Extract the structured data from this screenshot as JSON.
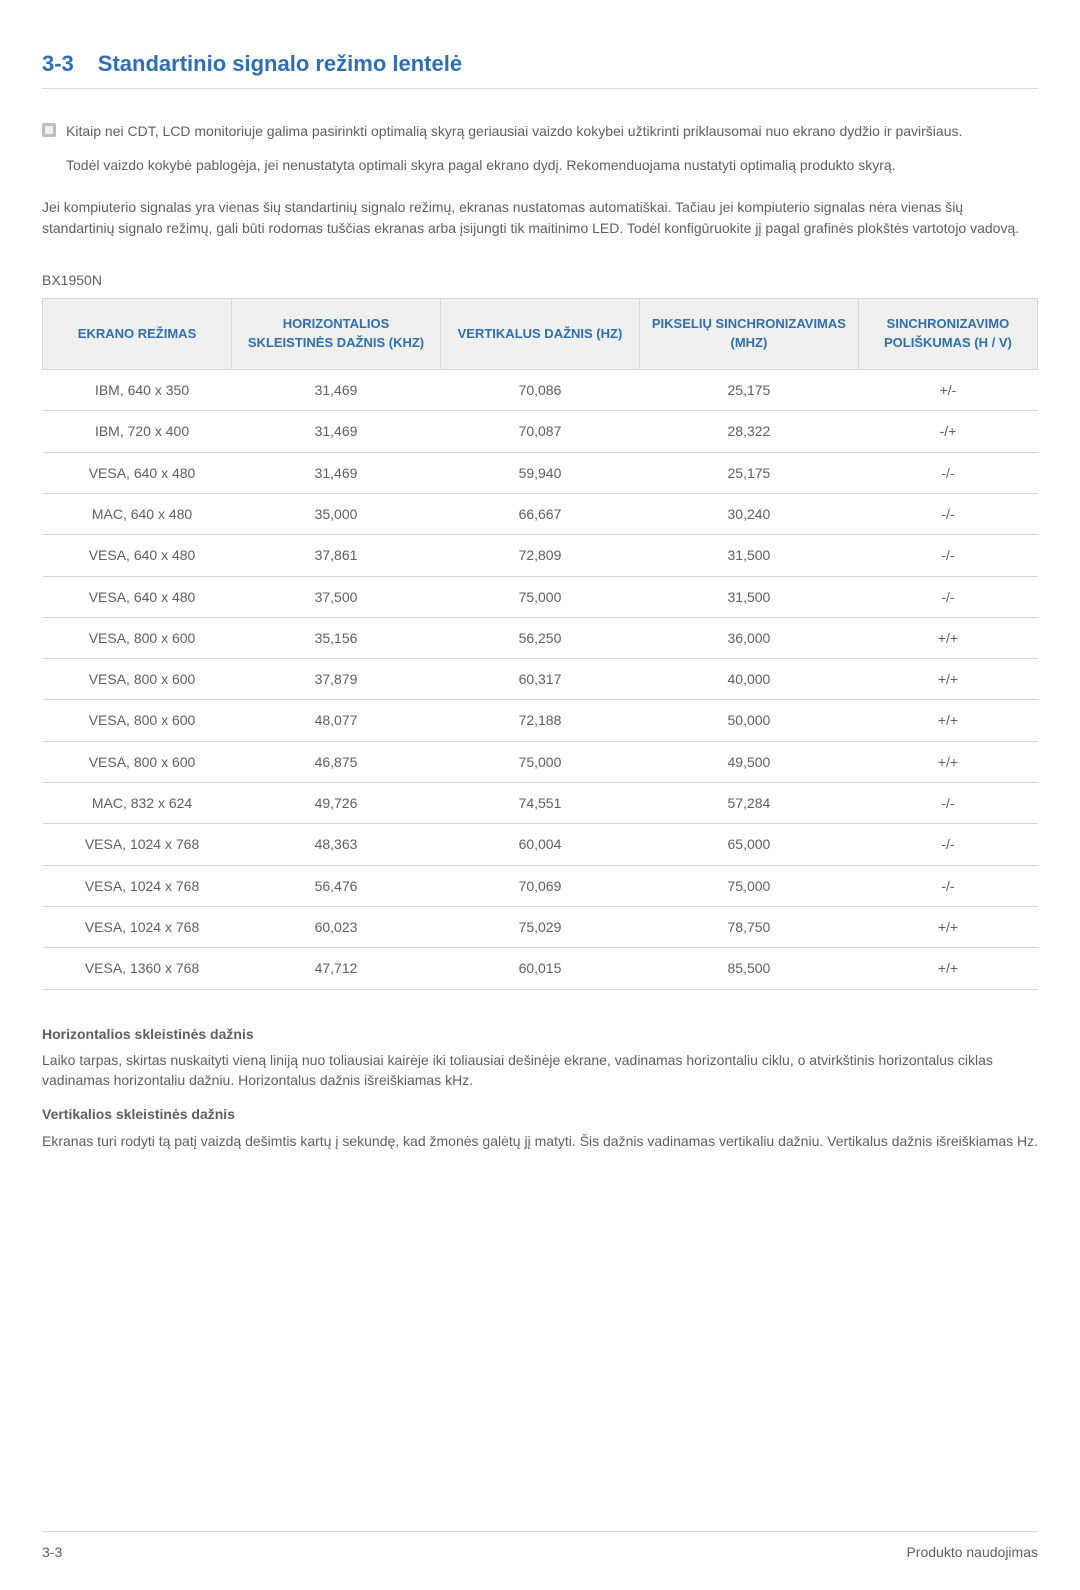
{
  "heading": {
    "num": "3-3",
    "title": "Standartinio signalo režimo lentelė"
  },
  "note": {
    "p1": "Kitaip nei CDT, LCD monitoriuje galima pasirinkti optimalią skyrą geriausiai vaizdo kokybei užtikrinti priklausomai nuo ekrano dydžio ir paviršiaus.",
    "p2": "Todėl vaizdo kokybė pablogėja, jei nenustatyta optimali skyra pagal ekrano dydį. Rekomenduojama nustatyti optimalią produkto skyrą."
  },
  "intro": "Jei kompiuterio signalas yra vienas šių standartinių signalo režimų, ekranas nustatomas automatiškai. Tačiau jei kompiuterio signalas nėra vienas šių standartinių signalo režimų, gali būti rodomas tuščias ekranas arba įsijungti tik maitinimo LED. Todėl konfigūruokite jį pagal grafinės plokštės vartotojo vadovą.",
  "model": "BX1950N",
  "table": {
    "columns": [
      "EKRANO REŽIMAS",
      "HORIZONTALIOS SKLEISTINĖS DAŽNIS (KHZ)",
      "VERTIKALUS DAŽNIS (HZ)",
      "PIKSELIŲ SINCHRONIZAVIMAS (MHZ)",
      "SINCHRONIZAVIMO POLIŠKUMAS (H / V)"
    ],
    "rows": [
      [
        "IBM, 640 x 350",
        "31,469",
        "70,086",
        "25,175",
        "+/-"
      ],
      [
        "IBM, 720 x 400",
        "31,469",
        "70,087",
        "28,322",
        "-/+"
      ],
      [
        "VESA, 640 x 480",
        "31,469",
        "59,940",
        "25,175",
        "-/-"
      ],
      [
        "MAC, 640 x 480",
        "35,000",
        "66,667",
        "30,240",
        "-/-"
      ],
      [
        "VESA, 640 x 480",
        "37,861",
        "72,809",
        "31,500",
        "-/-"
      ],
      [
        "VESA, 640 x 480",
        "37,500",
        "75,000",
        "31,500",
        "-/-"
      ],
      [
        "VESA, 800 x 600",
        "35,156",
        "56,250",
        "36,000",
        "+/+"
      ],
      [
        "VESA, 800 x 600",
        "37,879",
        "60,317",
        "40,000",
        "+/+"
      ],
      [
        "VESA, 800 x 600",
        "48,077",
        "72,188",
        "50,000",
        "+/+"
      ],
      [
        "VESA, 800 x 600",
        "46,875",
        "75,000",
        "49,500",
        "+/+"
      ],
      [
        "MAC, 832 x 624",
        "49,726",
        "74,551",
        "57,284",
        "-/-"
      ],
      [
        "VESA, 1024 x 768",
        "48,363",
        "60,004",
        "65,000",
        "-/-"
      ],
      [
        "VESA, 1024 x 768",
        "56,476",
        "70,069",
        "75,000",
        "-/-"
      ],
      [
        "VESA, 1024 x 768",
        "60,023",
        "75,029",
        "78,750",
        "+/+"
      ],
      [
        "VESA, 1360 x 768",
        "47,712",
        "60,015",
        "85,500",
        "+/+"
      ]
    ]
  },
  "defs": {
    "h_title": "Horizontalios skleistinės dažnis",
    "h_body": "Laiko tarpas, skirtas nuskaityti vieną liniją nuo toliausiai kairėje iki toliausiai dešinėje ekrane, vadinamas horizontaliu ciklu, o atvirkštinis horizontalus ciklas vadinamas horizontaliu dažniu. Horizontalus dažnis išreiškiamas kHz.",
    "v_title": "Vertikalios skleistinės dažnis",
    "v_body": "Ekranas turi rodyti tą patį vaizdą dešimtis kartų į sekundę, kad žmonės galėtų jį matyti. Šis dažnis vadinamas vertikaliu dažniu. Vertikalus dažnis išreiškiamas Hz."
  },
  "footer": {
    "left": "3-3",
    "right": "Produkto naudojimas"
  }
}
